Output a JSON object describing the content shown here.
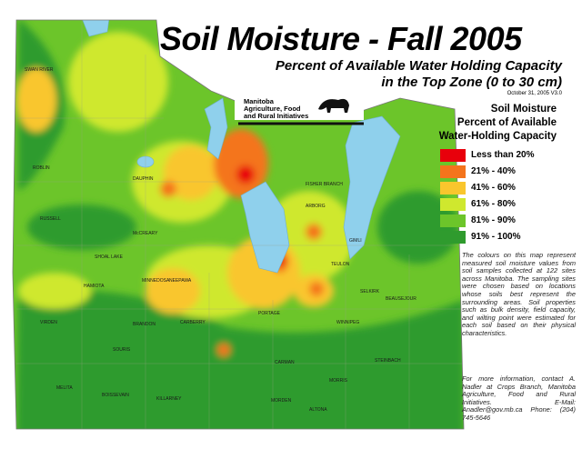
{
  "header": {
    "title": "Soil Moisture - Fall 2005",
    "subtitle": [
      "Percent of Available Water Holding Capacity",
      "in the Top Zone (0 to 30 cm)"
    ],
    "date": "October 31, 2005   V3.0"
  },
  "logo": {
    "lines": [
      "Manitoba",
      "Agriculture, Food",
      "and Rural Initiatives"
    ]
  },
  "legend": {
    "title": [
      "Soil Moisture",
      "Percent of Available",
      "Water-Holding Capacity"
    ],
    "items": [
      {
        "label": "Less than 20%",
        "color": "#e8000b"
      },
      {
        "label": "21% - 40%",
        "color": "#f4741c"
      },
      {
        "label": "41% - 60%",
        "color": "#f9c62d"
      },
      {
        "label": "61% - 80%",
        "color": "#cfe82e"
      },
      {
        "label": "81% - 90%",
        "color": "#6cc52a"
      },
      {
        "label": "91% - 100%",
        "color": "#2f9b2e"
      }
    ]
  },
  "description": "The colours on this map represent measured soil moisture values from soil samples collected at 122 sites across Manitoba. The sampling sites were chosen based on locations whose soils best represent the surrounding areas. Soil properties such as bulk density, field capacity, and wilting point were estimated for each soil based on their physical characteristics.",
  "contact": "For more information, contact A. Nadler at Crops Branch, Manitoba Agriculture, Food and Rural Initiatives. E-Mail: Anadler@gov.mb.ca Phone: (204) 745-5646",
  "places": [
    "SWAN RIVER",
    "ROBLIN",
    "RUSSELL",
    "DAUPHIN",
    "FISHER BRANCH",
    "ARBORG",
    "GIMLI",
    "TEULON",
    "SELKIRK",
    "BEAUSEJOUR",
    "SHOAL LAKE",
    "HAMIOTA",
    "MINNEDOSA",
    "NEEPAWA",
    "VIRDEN",
    "BRANDON",
    "CARBERRY",
    "PORTAGE",
    "WINNIPEG",
    "STEINBACH",
    "SOURIS",
    "MELITA",
    "BOISSEVAIN",
    "KILLARNEY",
    "CARMAN",
    "MORRIS",
    "MORDEN",
    "ALTONA",
    "McCREARY"
  ]
}
